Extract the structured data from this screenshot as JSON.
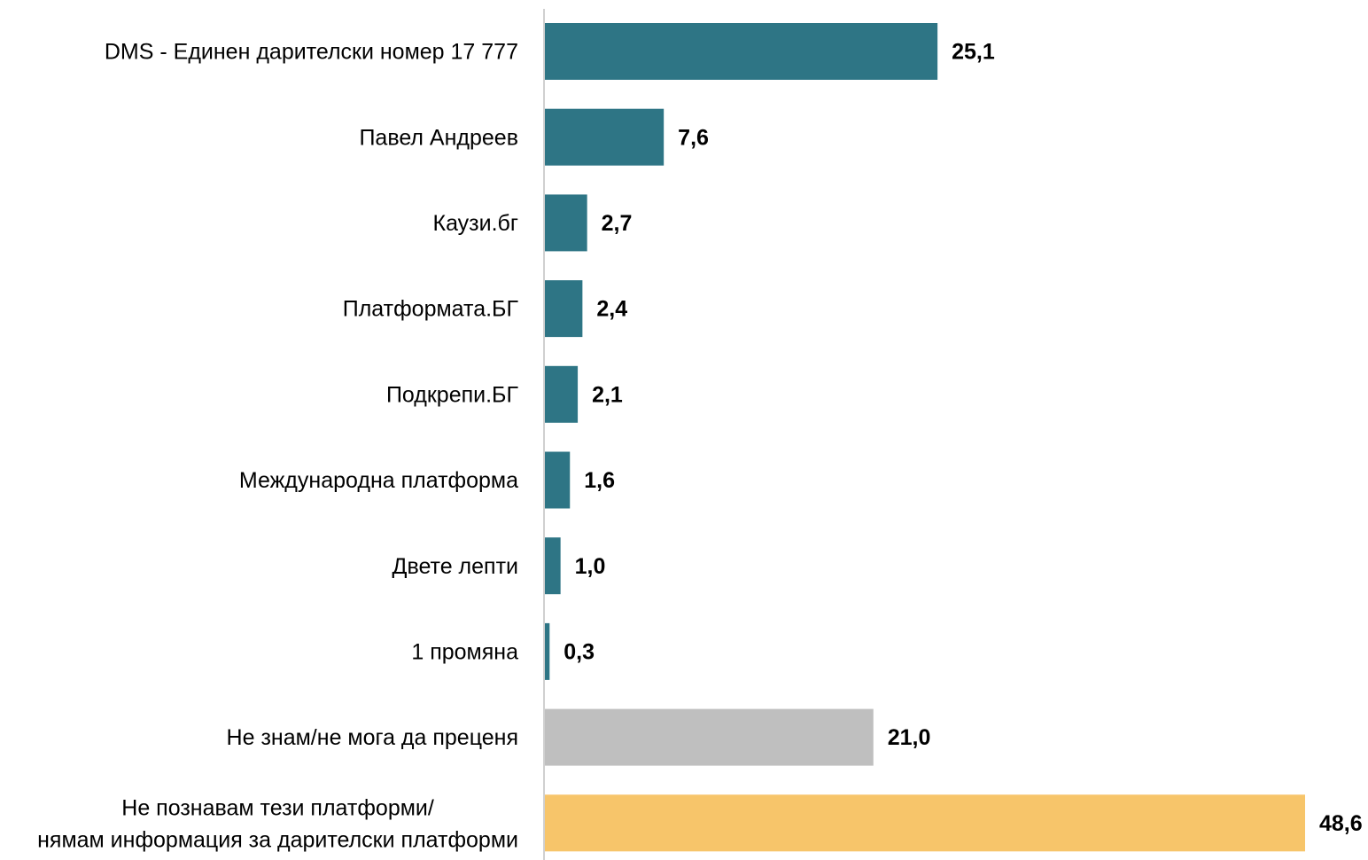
{
  "chart_data": {
    "type": "bar",
    "orientation": "horizontal",
    "categories": [
      "DMS - Единен дарителски номер 17 777",
      "Павел Андреев",
      "Каузи.бг",
      "Платформата.БГ",
      "Подкрепи.БГ",
      "Международна платформа",
      "Двете лепти",
      "1 промяна",
      "Не знам/не мога да преценя",
      "Не познавам тези платформи/\nнямам информация за дарителски платформи"
    ],
    "values": [
      25.1,
      7.6,
      2.7,
      2.4,
      2.1,
      1.6,
      1.0,
      0.3,
      21.0,
      48.6
    ],
    "value_labels": [
      "25,1",
      "7,6",
      "2,7",
      "2,4",
      "2,1",
      "1,6",
      "1,0",
      "0,3",
      "21,0",
      "48,6"
    ],
    "colors": [
      "#2e7585",
      "#2e7585",
      "#2e7585",
      "#2e7585",
      "#2e7585",
      "#2e7585",
      "#2e7585",
      "#2e7585",
      "#bfbfbf",
      "#f7c56a"
    ]
  }
}
